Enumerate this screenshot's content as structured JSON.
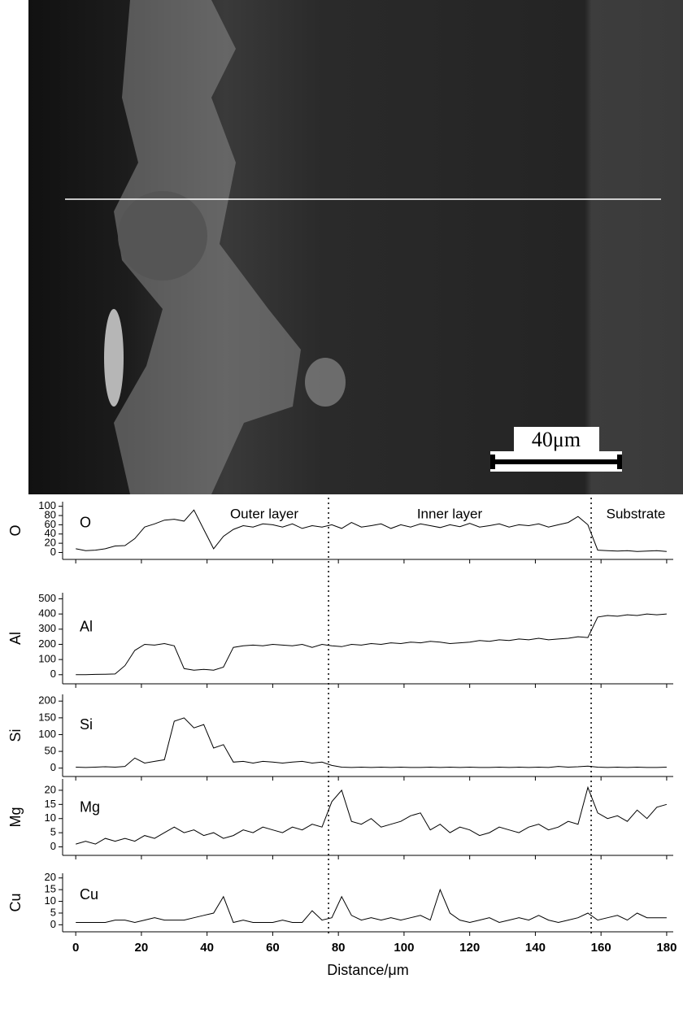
{
  "image": {
    "scale_bar": "40μm"
  },
  "chart_data": {
    "type": "line",
    "xlabel": "Distance/μm",
    "x": [
      0,
      3,
      6,
      9,
      12,
      15,
      18,
      21,
      24,
      27,
      30,
      33,
      36,
      39,
      42,
      45,
      48,
      51,
      54,
      57,
      60,
      63,
      66,
      69,
      72,
      75,
      78,
      81,
      84,
      87,
      90,
      93,
      96,
      99,
      102,
      105,
      108,
      111,
      114,
      117,
      120,
      123,
      126,
      129,
      132,
      135,
      138,
      141,
      144,
      147,
      150,
      153,
      156,
      159,
      162,
      165,
      168,
      171,
      174,
      177,
      180
    ],
    "xlim": [
      -4,
      182
    ],
    "xticks": [
      0,
      20,
      40,
      60,
      80,
      100,
      120,
      140,
      160,
      180
    ],
    "dividers": [
      77,
      157
    ],
    "annotations": [
      "Outer layer",
      "Inner layer",
      "Substrate"
    ],
    "series": [
      {
        "name": "O",
        "color": "#000000",
        "ylim": [
          -15,
          110
        ],
        "yticks": [
          0,
          20,
          40,
          60,
          80,
          100
        ],
        "values": [
          8,
          4,
          5,
          8,
          14,
          15,
          30,
          55,
          62,
          70,
          72,
          68,
          92,
          50,
          8,
          35,
          50,
          58,
          55,
          62,
          60,
          55,
          62,
          52,
          58,
          55,
          60,
          52,
          65,
          55,
          58,
          62,
          52,
          60,
          55,
          62,
          58,
          54,
          60,
          56,
          63,
          55,
          58,
          62,
          55,
          60,
          58,
          62,
          55,
          60,
          65,
          78,
          60,
          5,
          4,
          3,
          4,
          2,
          3,
          4,
          2
        ]
      },
      {
        "name": "Al",
        "color": "#000000",
        "ylim": [
          -60,
          540
        ],
        "yticks": [
          0,
          100,
          200,
          300,
          400,
          500
        ],
        "values": [
          0,
          0,
          2,
          3,
          5,
          60,
          160,
          200,
          195,
          205,
          190,
          40,
          30,
          35,
          30,
          50,
          180,
          190,
          195,
          190,
          200,
          195,
          190,
          200,
          180,
          200,
          190,
          185,
          200,
          195,
          205,
          200,
          210,
          205,
          215,
          210,
          220,
          215,
          205,
          210,
          215,
          225,
          220,
          230,
          225,
          235,
          230,
          240,
          230,
          235,
          240,
          250,
          245,
          380,
          390,
          385,
          395,
          390,
          400,
          395,
          400
        ]
      },
      {
        "name": "Si",
        "color": "#000000",
        "ylim": [
          -25,
          220
        ],
        "yticks": [
          0,
          50,
          100,
          150,
          200
        ],
        "values": [
          3,
          2,
          3,
          4,
          3,
          5,
          30,
          15,
          20,
          25,
          140,
          150,
          120,
          130,
          60,
          70,
          18,
          20,
          15,
          20,
          18,
          15,
          18,
          20,
          15,
          18,
          8,
          3,
          2,
          3,
          2,
          3,
          2,
          3,
          2,
          2,
          3,
          2,
          3,
          2,
          3,
          2,
          2,
          3,
          2,
          3,
          2,
          3,
          2,
          5,
          3,
          4,
          6,
          3,
          2,
          3,
          2,
          3,
          2,
          2,
          3
        ]
      },
      {
        "name": "Mg",
        "color": "#000000",
        "ylim": [
          -3,
          24
        ],
        "yticks": [
          0,
          5,
          10,
          15,
          20
        ],
        "values": [
          1,
          2,
          1,
          3,
          2,
          3,
          2,
          4,
          3,
          5,
          7,
          5,
          6,
          4,
          5,
          3,
          4,
          6,
          5,
          7,
          6,
          5,
          7,
          6,
          8,
          7,
          16,
          20,
          9,
          8,
          10,
          7,
          8,
          9,
          11,
          12,
          6,
          8,
          5,
          7,
          6,
          4,
          5,
          7,
          6,
          5,
          7,
          8,
          6,
          7,
          9,
          8,
          21,
          12,
          10,
          11,
          9,
          13,
          10,
          14,
          15
        ]
      },
      {
        "name": "Cu",
        "color": "#000000",
        "ylim": [
          -3,
          22
        ],
        "yticks": [
          0,
          5,
          10,
          15,
          20
        ],
        "values": [
          1,
          1,
          1,
          1,
          2,
          2,
          1,
          2,
          3,
          2,
          2,
          2,
          3,
          4,
          5,
          12,
          1,
          2,
          1,
          1,
          1,
          2,
          1,
          1,
          6,
          2,
          3,
          12,
          4,
          2,
          3,
          2,
          3,
          2,
          3,
          4,
          2,
          15,
          5,
          2,
          1,
          2,
          3,
          1,
          2,
          3,
          2,
          4,
          2,
          1,
          2,
          3,
          5,
          2,
          3,
          4,
          2,
          5,
          3,
          3,
          3
        ]
      }
    ]
  }
}
